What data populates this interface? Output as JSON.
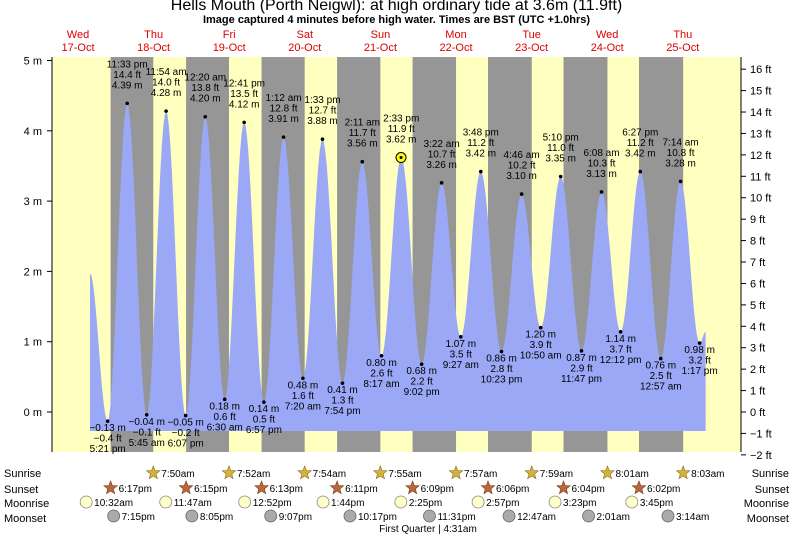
{
  "header": {
    "title": "Hells Mouth (Porth Neigwl): at high  ordinary tide at 3.6m (11.9ft)",
    "subtitle": "Image captured 4 minutes before high water. Times are BST (UTC +1.0hrs)"
  },
  "chart_data": {
    "type": "area",
    "colors": {
      "tide_fill": "#9aa8f5",
      "day": "#ffffc0",
      "night": "#969696",
      "day_label": "#e00000"
    },
    "y_left_ticks": [
      "5 m",
      "4 m",
      "3 m",
      "2 m",
      "1 m",
      "0 m"
    ],
    "y_right_ticks": [
      "16 ft",
      "15 ft",
      "14 ft",
      "13 ft",
      "12 ft",
      "11 ft",
      "10 ft",
      "9 ft",
      "8 ft",
      "7 ft",
      "6 ft",
      "5 ft",
      "4 ft",
      "3 ft",
      "2 ft",
      "1 ft",
      "0 ft",
      "−1 ft",
      "−2 ft"
    ],
    "ylim_m": [
      -0.65,
      5.3
    ],
    "days": [
      {
        "dow": "Wed",
        "date": "17-Oct"
      },
      {
        "dow": "Thu",
        "date": "18-Oct"
      },
      {
        "dow": "Fri",
        "date": "19-Oct"
      },
      {
        "dow": "Sat",
        "date": "20-Oct"
      },
      {
        "dow": "Sun",
        "date": "21-Oct"
      },
      {
        "dow": "Mon",
        "date": "22-Oct"
      },
      {
        "dow": "Tue",
        "date": "23-Oct"
      },
      {
        "dow": "Wed",
        "date": "24-Oct"
      },
      {
        "dow": "Thu",
        "date": "25-Oct"
      }
    ],
    "tides": [
      {
        "x": "17-Oct 17:21",
        "m": -0.13,
        "lines": [
          "−0.13 m",
          "−0.4 ft",
          "5:21 pm"
        ]
      },
      {
        "x": "17-Oct 23:33",
        "m": 4.39,
        "lines": [
          "11:33 pm",
          "14.4 ft",
          "4.39 m"
        ]
      },
      {
        "x": "18-Oct 05:45",
        "m": -0.04,
        "lines": [
          "−0.04 m",
          "−0.1 ft",
          "5:45 am"
        ]
      },
      {
        "x": "18-Oct 11:54",
        "m": 4.28,
        "lines": [
          "11:54 am",
          "14.0 ft",
          "4.28 m"
        ]
      },
      {
        "x": "18-Oct 18:07",
        "m": -0.05,
        "lines": [
          "−0.05 m",
          "−0.2 ft",
          "6:07 pm"
        ]
      },
      {
        "x": "19-Oct 00:20",
        "m": 4.2,
        "lines": [
          "12:20 am",
          "13.8 ft",
          "4.20 m"
        ]
      },
      {
        "x": "19-Oct 06:30",
        "m": 0.18,
        "lines": [
          "0.18 m",
          "0.6 ft",
          "6:30 am"
        ]
      },
      {
        "x": "19-Oct 12:41",
        "m": 4.12,
        "lines": [
          "12:41 pm",
          "13.5 ft",
          "4.12 m"
        ]
      },
      {
        "x": "19-Oct 18:57",
        "m": 0.14,
        "lines": [
          "0.14 m",
          "0.5 ft",
          "6:57 pm"
        ]
      },
      {
        "x": "20-Oct 01:12",
        "m": 3.91,
        "lines": [
          "1:12 am",
          "12.8 ft",
          "3.91 m"
        ]
      },
      {
        "x": "20-Oct 07:20",
        "m": 0.48,
        "lines": [
          "0.48 m",
          "1.6 ft",
          "7:20 am"
        ]
      },
      {
        "x": "20-Oct 13:33",
        "m": 3.88,
        "lines": [
          "1:33 pm",
          "12.7 ft",
          "3.88 m"
        ]
      },
      {
        "x": "20-Oct 19:54",
        "m": 0.41,
        "lines": [
          "0.41 m",
          "1.3 ft",
          "7:54 pm"
        ]
      },
      {
        "x": "21-Oct 02:11",
        "m": 3.56,
        "lines": [
          "2:11 am",
          "11.7 ft",
          "3.56 m"
        ]
      },
      {
        "x": "21-Oct 08:17",
        "m": 0.8,
        "lines": [
          "0.80 m",
          "2.6 ft",
          "8:17 am"
        ]
      },
      {
        "x": "21-Oct 14:33",
        "m": 3.62,
        "lines": [
          "2:33 pm",
          "11.9 ft",
          "3.62 m"
        ]
      },
      {
        "x": "21-Oct 21:02",
        "m": 0.68,
        "lines": [
          "0.68 m",
          "2.2 ft",
          "9:02 pm"
        ]
      },
      {
        "x": "22-Oct 03:22",
        "m": 3.26,
        "lines": [
          "3:22 am",
          "10.7 ft",
          "3.26 m"
        ]
      },
      {
        "x": "22-Oct 09:27",
        "m": 1.07,
        "lines": [
          "1.07 m",
          "3.5 ft",
          "9:27 am"
        ]
      },
      {
        "x": "22-Oct 15:48",
        "m": 3.42,
        "lines": [
          "3:48 pm",
          "11.2 ft",
          "3.42 m"
        ]
      },
      {
        "x": "22-Oct 22:23",
        "m": 0.86,
        "lines": [
          "0.86 m",
          "2.8 ft",
          "10:23 pm"
        ]
      },
      {
        "x": "23-Oct 04:46",
        "m": 3.1,
        "lines": [
          "4:46 am",
          "10.2 ft",
          "3.10 m"
        ]
      },
      {
        "x": "23-Oct 10:50",
        "m": 1.2,
        "lines": [
          "1.20 m",
          "3.9 ft",
          "10:50 am"
        ]
      },
      {
        "x": "23-Oct 17:10",
        "m": 3.35,
        "lines": [
          "5:10 pm",
          "11.0 ft",
          "3.35 m"
        ]
      },
      {
        "x": "23-Oct 23:47",
        "m": 0.87,
        "lines": [
          "0.87 m",
          "2.9 ft",
          "11:47 pm"
        ]
      },
      {
        "x": "24-Oct 06:08",
        "m": 3.13,
        "lines": [
          "6:08 am",
          "10.3 ft",
          "3.13 m"
        ]
      },
      {
        "x": "24-Oct 12:12",
        "m": 1.14,
        "lines": [
          "1.14 m",
          "3.7 ft",
          "12:12 pm"
        ]
      },
      {
        "x": "24-Oct 18:27",
        "m": 3.42,
        "lines": [
          "6:27 pm",
          "11.2 ft",
          "3.42 m"
        ]
      },
      {
        "x": "25-Oct 00:57",
        "m": 0.76,
        "lines": [
          "0.76 m",
          "2.5 ft",
          "12:57 am"
        ]
      },
      {
        "x": "25-Oct 07:14",
        "m": 3.28,
        "lines": [
          "7:14 am",
          "10.8 ft",
          "3.28 m"
        ]
      },
      {
        "x": "25-Oct 13:17",
        "m": 0.98,
        "lines": [
          "0.98 m",
          "3.2 ft",
          "1:17 pm"
        ]
      }
    ],
    "current_marker": {
      "x": "21-Oct 14:29",
      "m": 3.62
    },
    "row_labels": [
      "Sunrise",
      "Sunset",
      "Moonrise",
      "Moonset"
    ],
    "sunrise": [
      {
        "date": "18-Oct",
        "time": "7:50am"
      },
      {
        "date": "19-Oct",
        "time": "7:52am"
      },
      {
        "date": "20-Oct",
        "time": "7:54am"
      },
      {
        "date": "21-Oct",
        "time": "7:55am"
      },
      {
        "date": "22-Oct",
        "time": "7:57am"
      },
      {
        "date": "23-Oct",
        "time": "7:59am"
      },
      {
        "date": "24-Oct",
        "time": "8:01am"
      },
      {
        "date": "25-Oct",
        "time": "8:03am"
      }
    ],
    "sunset": [
      {
        "date": "17-Oct",
        "time": "6:17pm"
      },
      {
        "date": "18-Oct",
        "time": "6:15pm"
      },
      {
        "date": "19-Oct",
        "time": "6:13pm"
      },
      {
        "date": "20-Oct",
        "time": "6:11pm"
      },
      {
        "date": "21-Oct",
        "time": "6:09pm"
      },
      {
        "date": "22-Oct",
        "time": "6:06pm"
      },
      {
        "date": "23-Oct",
        "time": "6:04pm"
      },
      {
        "date": "24-Oct",
        "time": "6:02pm"
      }
    ],
    "moonrise": [
      {
        "date": "17-Oct",
        "time": "10:32am"
      },
      {
        "date": "18-Oct",
        "time": "11:47am"
      },
      {
        "date": "19-Oct",
        "time": "12:52pm"
      },
      {
        "date": "20-Oct",
        "time": "1:44pm"
      },
      {
        "date": "21-Oct",
        "time": "2:25pm"
      },
      {
        "date": "22-Oct",
        "time": "2:57pm"
      },
      {
        "date": "23-Oct",
        "time": "3:23pm"
      },
      {
        "date": "24-Oct",
        "time": "3:45pm"
      }
    ],
    "moonset": [
      {
        "date": "17-Oct",
        "time": "7:15pm"
      },
      {
        "date": "18-Oct",
        "time": "8:05pm"
      },
      {
        "date": "19-Oct",
        "time": "9:07pm"
      },
      {
        "date": "20-Oct",
        "time": "10:17pm"
      },
      {
        "date": "21-Oct",
        "time": "11:31pm"
      },
      {
        "date": "23-Oct",
        "time": "12:47am"
      },
      {
        "date": "24-Oct",
        "time": "2:01am"
      },
      {
        "date": "25-Oct",
        "time": "3:14am"
      }
    ],
    "moon_phase_note": "First Quarter | 4:31am"
  }
}
